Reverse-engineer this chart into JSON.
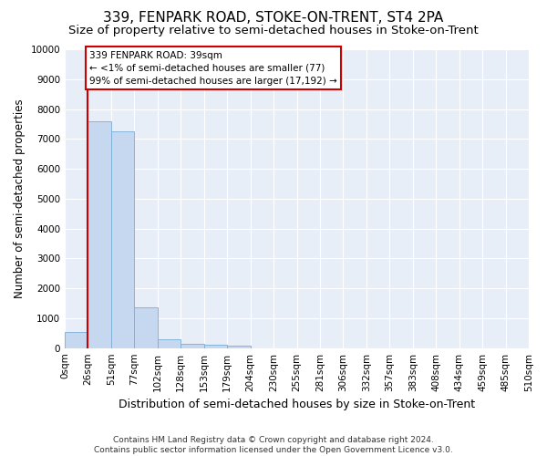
{
  "title1": "339, FENPARK ROAD, STOKE-ON-TRENT, ST4 2PA",
  "title2": "Size of property relative to semi-detached houses in Stoke-on-Trent",
  "xlabel": "Distribution of semi-detached houses by size in Stoke-on-Trent",
  "ylabel": "Number of semi-detached properties",
  "footer": "Contains HM Land Registry data © Crown copyright and database right 2024.\nContains public sector information licensed under the Open Government Licence v3.0.",
  "x_labels": [
    "0sqm",
    "26sqm",
    "51sqm",
    "77sqm",
    "102sqm",
    "128sqm",
    "153sqm",
    "179sqm",
    "204sqm",
    "230sqm",
    "255sqm",
    "281sqm",
    "306sqm",
    "332sqm",
    "357sqm",
    "383sqm",
    "408sqm",
    "434sqm",
    "459sqm",
    "485sqm",
    "510sqm"
  ],
  "bar_values": [
    550,
    7600,
    7250,
    1350,
    300,
    150,
    100,
    80,
    0,
    0,
    0,
    0,
    0,
    0,
    0,
    0,
    0,
    0,
    0,
    0
  ],
  "bar_color": "#c5d8f0",
  "bar_edge_color": "#7aadd4",
  "ylim": [
    0,
    10000
  ],
  "yticks": [
    0,
    1000,
    2000,
    3000,
    4000,
    5000,
    6000,
    7000,
    8000,
    9000,
    10000
  ],
  "red_line_x": 1.0,
  "red_line_color": "#cc0000",
  "annotation_line1": "339 FENPARK ROAD: 39sqm",
  "annotation_line2": "← <1% of semi-detached houses are smaller (77)",
  "annotation_line3": "99% of semi-detached houses are larger (17,192) →",
  "annotation_box_color": "#ffffff",
  "annotation_box_edge": "#cc0000",
  "background_color": "#e8eef8",
  "grid_color": "#ffffff",
  "title1_fontsize": 11,
  "title2_fontsize": 9.5,
  "xlabel_fontsize": 9,
  "ylabel_fontsize": 8.5,
  "tick_fontsize": 7.5,
  "annotation_fontsize": 7.5,
  "footer_fontsize": 6.5
}
